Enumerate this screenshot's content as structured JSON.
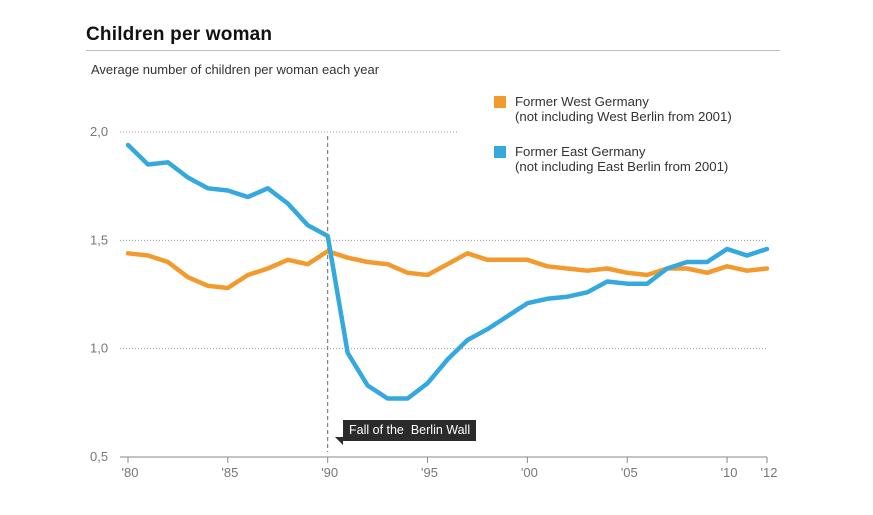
{
  "title": "Children per woman",
  "subtitle": "Average number of children per woman each year",
  "legend": [
    {
      "label_line1": "Former West Germany",
      "label_line2": "(not including West Berlin from 2001)",
      "color": "#f39a2e"
    },
    {
      "label_line1": "Former East Germany",
      "label_line2": "(not including East Berlin from 2001)",
      "color": "#35a8de"
    }
  ],
  "annotation": {
    "text": "Fall of the  Berlin Wall",
    "x_year": 1990
  },
  "chart_data": {
    "type": "line",
    "title": "Children per woman",
    "subtitle": "Average number of children per woman each year",
    "xlabel": "",
    "ylabel": "",
    "xlim": [
      1980,
      2012
    ],
    "ylim": [
      0.5,
      2.0
    ],
    "y_ticks": [
      0.5,
      1.0,
      1.5,
      2.0
    ],
    "y_tick_labels": [
      "0,5",
      "1,0",
      "1,5",
      "2,0"
    ],
    "x_ticks": [
      1980,
      1985,
      1990,
      1995,
      2000,
      2005,
      2010,
      2012
    ],
    "x_tick_labels": [
      "'80",
      "'85",
      "'90",
      "'95",
      "'00",
      "'05",
      "'10",
      "'12"
    ],
    "grid": true,
    "legend_position": "top-right",
    "x": [
      1980,
      1981,
      1982,
      1983,
      1984,
      1985,
      1986,
      1987,
      1988,
      1989,
      1990,
      1991,
      1992,
      1993,
      1994,
      1995,
      1996,
      1997,
      1998,
      1999,
      2000,
      2001,
      2002,
      2003,
      2004,
      2005,
      2006,
      2007,
      2008,
      2009,
      2010,
      2011,
      2012
    ],
    "series": [
      {
        "name": "Former West Germany",
        "color": "#f39a2e",
        "values": [
          1.44,
          1.43,
          1.4,
          1.33,
          1.29,
          1.28,
          1.34,
          1.37,
          1.41,
          1.39,
          1.45,
          1.42,
          1.4,
          1.39,
          1.35,
          1.34,
          1.39,
          1.44,
          1.41,
          1.41,
          1.41,
          1.38,
          1.37,
          1.36,
          1.37,
          1.35,
          1.34,
          1.37,
          1.37,
          1.35,
          1.38,
          1.36,
          1.37
        ]
      },
      {
        "name": "Former East Germany",
        "color": "#35a8de",
        "values": [
          1.94,
          1.85,
          1.86,
          1.79,
          1.74,
          1.73,
          1.7,
          1.74,
          1.67,
          1.57,
          1.52,
          0.98,
          0.83,
          0.77,
          0.77,
          0.84,
          0.95,
          1.04,
          1.09,
          1.15,
          1.21,
          1.23,
          1.24,
          1.26,
          1.31,
          1.3,
          1.3,
          1.37,
          1.4,
          1.4,
          1.46,
          1.43,
          1.46
        ]
      }
    ]
  }
}
